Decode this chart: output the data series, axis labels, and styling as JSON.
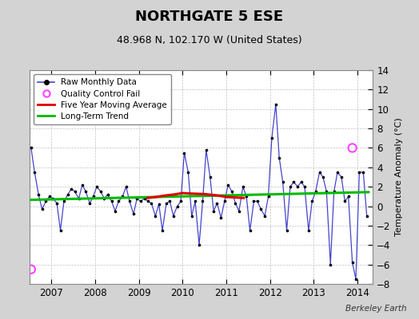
{
  "title": "NORTHGATE 5 ESE",
  "subtitle": "48.968 N, 102.170 W (United States)",
  "ylabel": "Temperature Anomaly (°C)",
  "watermark": "Berkeley Earth",
  "bg_color": "#d3d3d3",
  "plot_bg_color": "#ffffff",
  "ylim": [
    -8,
    14
  ],
  "yticks": [
    -8,
    -6,
    -4,
    -2,
    0,
    2,
    4,
    6,
    8,
    10,
    12,
    14
  ],
  "raw_color": "#4444cc",
  "dot_color": "#000000",
  "ma_color": "#dd0000",
  "trend_color": "#00bb00",
  "qc_color": "#ff44ff",
  "raw_times": [
    2006.54,
    2006.62,
    2006.71,
    2006.79,
    2006.88,
    2006.96,
    2007.04,
    2007.13,
    2007.21,
    2007.29,
    2007.38,
    2007.46,
    2007.54,
    2007.63,
    2007.71,
    2007.79,
    2007.88,
    2007.96,
    2008.04,
    2008.13,
    2008.21,
    2008.29,
    2008.38,
    2008.46,
    2008.54,
    2008.63,
    2008.71,
    2008.79,
    2008.88,
    2008.96,
    2009.04,
    2009.13,
    2009.21,
    2009.29,
    2009.38,
    2009.46,
    2009.54,
    2009.63,
    2009.71,
    2009.79,
    2009.88,
    2009.96,
    2010.04,
    2010.13,
    2010.21,
    2010.29,
    2010.38,
    2010.46,
    2010.54,
    2010.63,
    2010.71,
    2010.79,
    2010.88,
    2010.96,
    2011.04,
    2011.13,
    2011.21,
    2011.29,
    2011.38,
    2011.46,
    2011.54,
    2011.63,
    2011.71,
    2011.79,
    2011.88,
    2011.96,
    2012.04,
    2012.13,
    2012.21,
    2012.29,
    2012.38,
    2012.46,
    2012.54,
    2012.63,
    2012.71,
    2012.79,
    2012.88,
    2012.96,
    2013.04,
    2013.13,
    2013.21,
    2013.29,
    2013.38,
    2013.46,
    2013.54,
    2013.63,
    2013.71,
    2013.79,
    2013.88,
    2013.96,
    2014.04,
    2014.13,
    2014.21
  ],
  "raw_data": [
    6.0,
    3.5,
    1.2,
    -0.3,
    0.5,
    1.0,
    0.8,
    0.3,
    -2.5,
    0.5,
    1.2,
    1.8,
    1.5,
    0.8,
    2.2,
    1.5,
    0.3,
    1.0,
    2.0,
    1.5,
    0.8,
    1.2,
    0.5,
    -0.5,
    0.5,
    1.0,
    2.0,
    0.5,
    -0.8,
    0.8,
    0.5,
    0.8,
    0.5,
    0.3,
    -1.0,
    0.2,
    -2.5,
    0.3,
    0.5,
    -1.0,
    0.0,
    0.5,
    5.5,
    3.5,
    -1.0,
    0.5,
    -4.0,
    0.5,
    5.8,
    3.0,
    -0.5,
    0.3,
    -1.2,
    0.5,
    2.2,
    1.5,
    0.3,
    -0.5,
    2.0,
    1.0,
    -2.5,
    0.5,
    0.5,
    -0.3,
    -1.0,
    1.0,
    7.0,
    10.5,
    5.0,
    2.5,
    -2.5,
    2.0,
    2.5,
    2.0,
    2.5,
    2.0,
    -2.5,
    0.5,
    1.5,
    3.5,
    3.0,
    1.5,
    -6.0,
    1.5,
    3.5,
    3.0,
    0.5,
    1.0,
    -5.8,
    -7.5,
    3.5,
    3.5,
    -1.0
  ],
  "qc_fail_times": [
    2006.54,
    2013.88
  ],
  "qc_fail_values": [
    -6.5,
    6.0
  ],
  "ma_times": [
    2009.2,
    2009.4,
    2009.6,
    2009.8,
    2010.0,
    2010.2,
    2010.5,
    2010.8,
    2011.0,
    2011.2,
    2011.4
  ],
  "ma_values": [
    0.85,
    0.95,
    1.1,
    1.2,
    1.35,
    1.3,
    1.25,
    1.1,
    0.95,
    0.9,
    0.85
  ],
  "trend_times": [
    2006.5,
    2014.25
  ],
  "trend_values": [
    0.65,
    1.45
  ],
  "xlim": [
    2006.5,
    2014.35
  ],
  "xtick_locs": [
    2007,
    2008,
    2009,
    2010,
    2011,
    2012,
    2013,
    2014
  ],
  "xtick_labels": [
    "2007",
    "2008",
    "2009",
    "2010",
    "2011",
    "2012",
    "2013",
    "2014"
  ],
  "title_fontsize": 13,
  "subtitle_fontsize": 9,
  "tick_fontsize": 8.5,
  "ylabel_fontsize": 8
}
